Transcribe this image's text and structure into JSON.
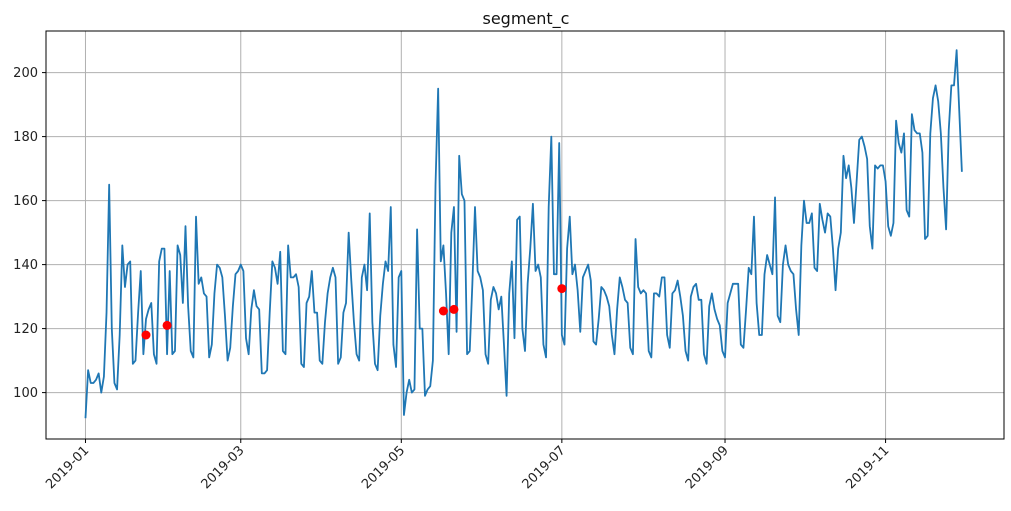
{
  "chart_data": {
    "type": "line",
    "title": "segment_c",
    "xlabel": "",
    "ylabel": "",
    "grid": true,
    "x_start": "2019-01-01",
    "x_end": "2019-12-01",
    "ylim": [
      85.5,
      213
    ],
    "xlim": [
      "2018-12-17",
      "2019-12-16"
    ],
    "x_ticks": [
      "2019-01",
      "2019-03",
      "2019-05",
      "2019-07",
      "2019-09",
      "2019-11"
    ],
    "y_ticks": [
      100,
      120,
      140,
      160,
      180,
      200
    ],
    "colors": {
      "line": "#1f77b4",
      "anomaly": "#ff0000",
      "grid": "#b0b0b0"
    },
    "series": [
      {
        "type": "line",
        "values": [
          92,
          107,
          103,
          103,
          104,
          106,
          100,
          105,
          125,
          165,
          120,
          103,
          101,
          118,
          146,
          133,
          140,
          141,
          109,
          110,
          125,
          138,
          112,
          123,
          126,
          128,
          112,
          109,
          141,
          145,
          145,
          112,
          138,
          112,
          113,
          146,
          143,
          128,
          152,
          127,
          113,
          111,
          155,
          134,
          136,
          131,
          130,
          111,
          115,
          131,
          140,
          139,
          136,
          124,
          110,
          114,
          127,
          137,
          138,
          140,
          138,
          117,
          112,
          126,
          132,
          127,
          126,
          106,
          106,
          107,
          125,
          141,
          139,
          134,
          144,
          113,
          112,
          146,
          136,
          136,
          137,
          133,
          109,
          108,
          128,
          130,
          138,
          125,
          125,
          110,
          109,
          122,
          131,
          136,
          139,
          136,
          109,
          111,
          125,
          128,
          150,
          135,
          122,
          112,
          110,
          136,
          140,
          132,
          156,
          122,
          109,
          107,
          124,
          134,
          141,
          138,
          158,
          115,
          108,
          136,
          138,
          93,
          100,
          104,
          100,
          101,
          151,
          120,
          120,
          99,
          101,
          102,
          110,
          165,
          195,
          141,
          146,
          131,
          112,
          150,
          158,
          119,
          174,
          162,
          160,
          112,
          113,
          134,
          158,
          138,
          136,
          132,
          112,
          109,
          129,
          133,
          131,
          126,
          130,
          115,
          99,
          131,
          141,
          117,
          154,
          155,
          120,
          113,
          134,
          145,
          159,
          138,
          140,
          136,
          115,
          111,
          158,
          180,
          137,
          137,
          178,
          118,
          115,
          145,
          155,
          137,
          140,
          132,
          119,
          136,
          138,
          140,
          135,
          116,
          115,
          123,
          133,
          132,
          130,
          127,
          118,
          112,
          126,
          136,
          133,
          129,
          128,
          114,
          112,
          148,
          133,
          131,
          132,
          131,
          113,
          111,
          131,
          131,
          130,
          136,
          136,
          118,
          114,
          131,
          132,
          135,
          130,
          124,
          113,
          110,
          130,
          133,
          134,
          129,
          129,
          112,
          109,
          127,
          131,
          126,
          123,
          121,
          113,
          111,
          128,
          131,
          134,
          134,
          134,
          115,
          114,
          126,
          139,
          137,
          155,
          128,
          118,
          118,
          137,
          143,
          140,
          137,
          161,
          124,
          122,
          140,
          146,
          140,
          138,
          137,
          126,
          118,
          146,
          160,
          153,
          153,
          156,
          139,
          138,
          159,
          154,
          150,
          156,
          155,
          145,
          132,
          145,
          150,
          174,
          167,
          171,
          164,
          153,
          166,
          179,
          180,
          177,
          173,
          152,
          145,
          171,
          170,
          171,
          171,
          166,
          152,
          149,
          153,
          185,
          178,
          175,
          181,
          157,
          155,
          187,
          182,
          181,
          181,
          175,
          148,
          149,
          181,
          192,
          196,
          191,
          181,
          164,
          151,
          182,
          196,
          196,
          207,
          188,
          169
        ],
        "anomalies": [
          {
            "x": "2019-01-24",
            "y": 118
          },
          {
            "x": "2019-02-01",
            "y": 121
          },
          {
            "x": "2019-05-17",
            "y": 125.5
          },
          {
            "x": "2019-05-21",
            "y": 126
          },
          {
            "x": "2019-07-01",
            "y": 132.5
          }
        ]
      }
    ]
  }
}
